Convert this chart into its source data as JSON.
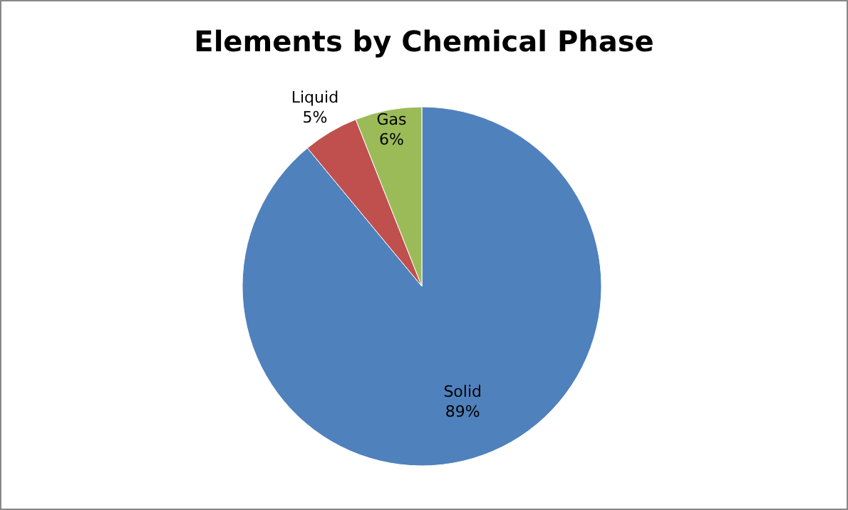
{
  "chart_data": {
    "type": "pie",
    "title": "Elements by Chemical Phase",
    "categories": [
      "Solid",
      "Liquid",
      "Gas"
    ],
    "values": [
      89,
      5,
      6
    ],
    "colors": [
      "#4f81bd",
      "#c0504d",
      "#9bbb59"
    ],
    "value_labels": [
      "89%",
      "5%",
      "6%"
    ]
  }
}
